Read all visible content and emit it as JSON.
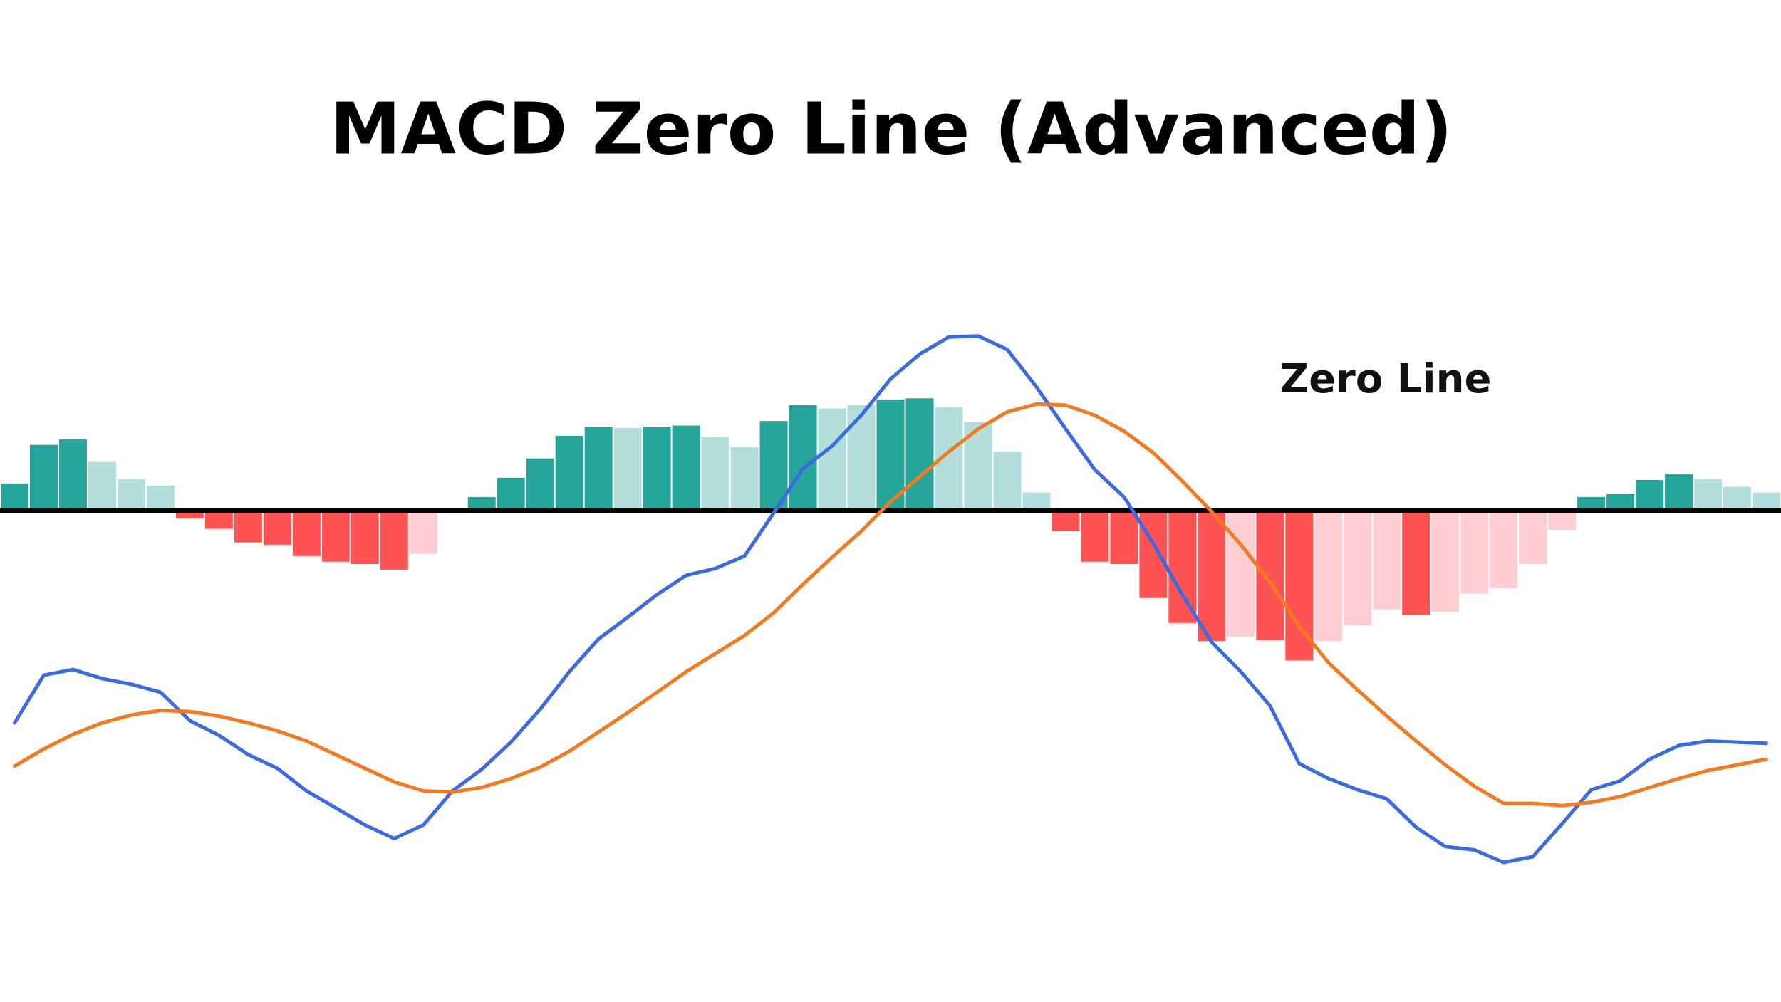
{
  "chart_data": {
    "type": "macd",
    "title": "MACD Zero Line (Advanced)",
    "annotation": "Zero Line",
    "categories": [
      null,
      null,
      null,
      null,
      null,
      null,
      null,
      null,
      null,
      null,
      null,
      null,
      null,
      null,
      null,
      null,
      null,
      null,
      null,
      null,
      null,
      null,
      null,
      null,
      null,
      null,
      null,
      null,
      null,
      null,
      null,
      null,
      null,
      null,
      null,
      null,
      null,
      null,
      null,
      null,
      null,
      null,
      null,
      null,
      null,
      null,
      null,
      null,
      null,
      null,
      null,
      null,
      null,
      null,
      null,
      null,
      null,
      null,
      null,
      null,
      null
    ],
    "histogram": {
      "values": [
        24,
        58,
        63,
        43,
        28,
        22,
        -7,
        -16,
        -28,
        -30,
        -40,
        -45,
        -47,
        -52,
        -38,
        -2,
        12,
        29,
        46,
        66,
        74,
        73,
        74,
        75,
        65,
        56,
        79,
        93,
        90,
        93,
        98,
        99,
        91,
        78,
        52,
        16,
        -18,
        -45,
        -47,
        -77,
        -99,
        -115,
        -111,
        -114,
        -132,
        -115,
        -101,
        -87,
        -92,
        -89,
        -73,
        -68,
        -47,
        -17,
        12,
        15,
        27,
        32,
        28,
        21,
        16
      ],
      "colors": [
        "#26a69a",
        "#26a69a",
        "#26a69a",
        "#b2dfdb",
        "#b2dfdb",
        "#b2dfdb",
        "#ff5252",
        "#ff5252",
        "#ff5252",
        "#ff5252",
        "#ff5252",
        "#ff5252",
        "#ff5252",
        "#ff5252",
        "#ffcdd2",
        "#ffcdd2",
        "#26a69a",
        "#26a69a",
        "#26a69a",
        "#26a69a",
        "#26a69a",
        "#b2dfdb",
        "#26a69a",
        "#26a69a",
        "#b2dfdb",
        "#b2dfdb",
        "#26a69a",
        "#26a69a",
        "#b2dfdb",
        "#b2dfdb",
        "#26a69a",
        "#26a69a",
        "#b2dfdb",
        "#b2dfdb",
        "#b2dfdb",
        "#b2dfdb",
        "#ff5252",
        "#ff5252",
        "#ff5252",
        "#ff5252",
        "#ff5252",
        "#ff5252",
        "#ffcdd2",
        "#ff5252",
        "#ff5252",
        "#ffcdd2",
        "#ffcdd2",
        "#ffcdd2",
        "#ff5252",
        "#ffcdd2",
        "#ffcdd2",
        "#ffcdd2",
        "#ffcdd2",
        "#ffcdd2",
        "#26a69a",
        "#26a69a",
        "#26a69a",
        "#26a69a",
        "#b2dfdb",
        "#b2dfdb",
        "#b2dfdb"
      ]
    },
    "lines": [
      {
        "color": "#3b6be0",
        "values": [
          -187,
          -145,
          -140,
          -148,
          -153,
          -160,
          -185,
          -198,
          -215,
          -227,
          -247,
          -262,
          -277,
          -289,
          -277,
          -247,
          -228,
          -204,
          -175,
          -142,
          -113,
          -94,
          -74,
          -57,
          -51,
          -40,
          -2,
          37,
          57,
          84,
          116,
          138,
          153,
          154,
          142,
          109,
          72,
          36,
          12,
          -29,
          -74,
          -116,
          -142,
          -172,
          -223,
          -236,
          -246,
          -254,
          -279,
          -296,
          -299,
          -310,
          -305,
          -276,
          -246,
          -238,
          -219,
          -207,
          -203,
          -204,
          -205
        ]
      },
      {
        "color": "#f47a1f",
        "values": [
          -225,
          -210,
          -197,
          -187,
          -180,
          -176,
          -177,
          -181,
          -187,
          -194,
          -203,
          -215,
          -227,
          -239,
          -247,
          -248,
          -244,
          -236,
          -226,
          -212,
          -195,
          -178,
          -160,
          -142,
          -126,
          -110,
          -90,
          -65,
          -41,
          -18,
          8,
          30,
          52,
          72,
          87,
          94,
          93,
          84,
          70,
          51,
          26,
          -1,
          -30,
          -63,
          -102,
          -134,
          -158,
          -181,
          -203,
          -224,
          -243,
          -258,
          -258,
          -260,
          -257,
          -252,
          -244,
          -236,
          -229,
          -224,
          -219
        ]
      }
    ],
    "ylim": [
      -433,
      450
    ]
  }
}
